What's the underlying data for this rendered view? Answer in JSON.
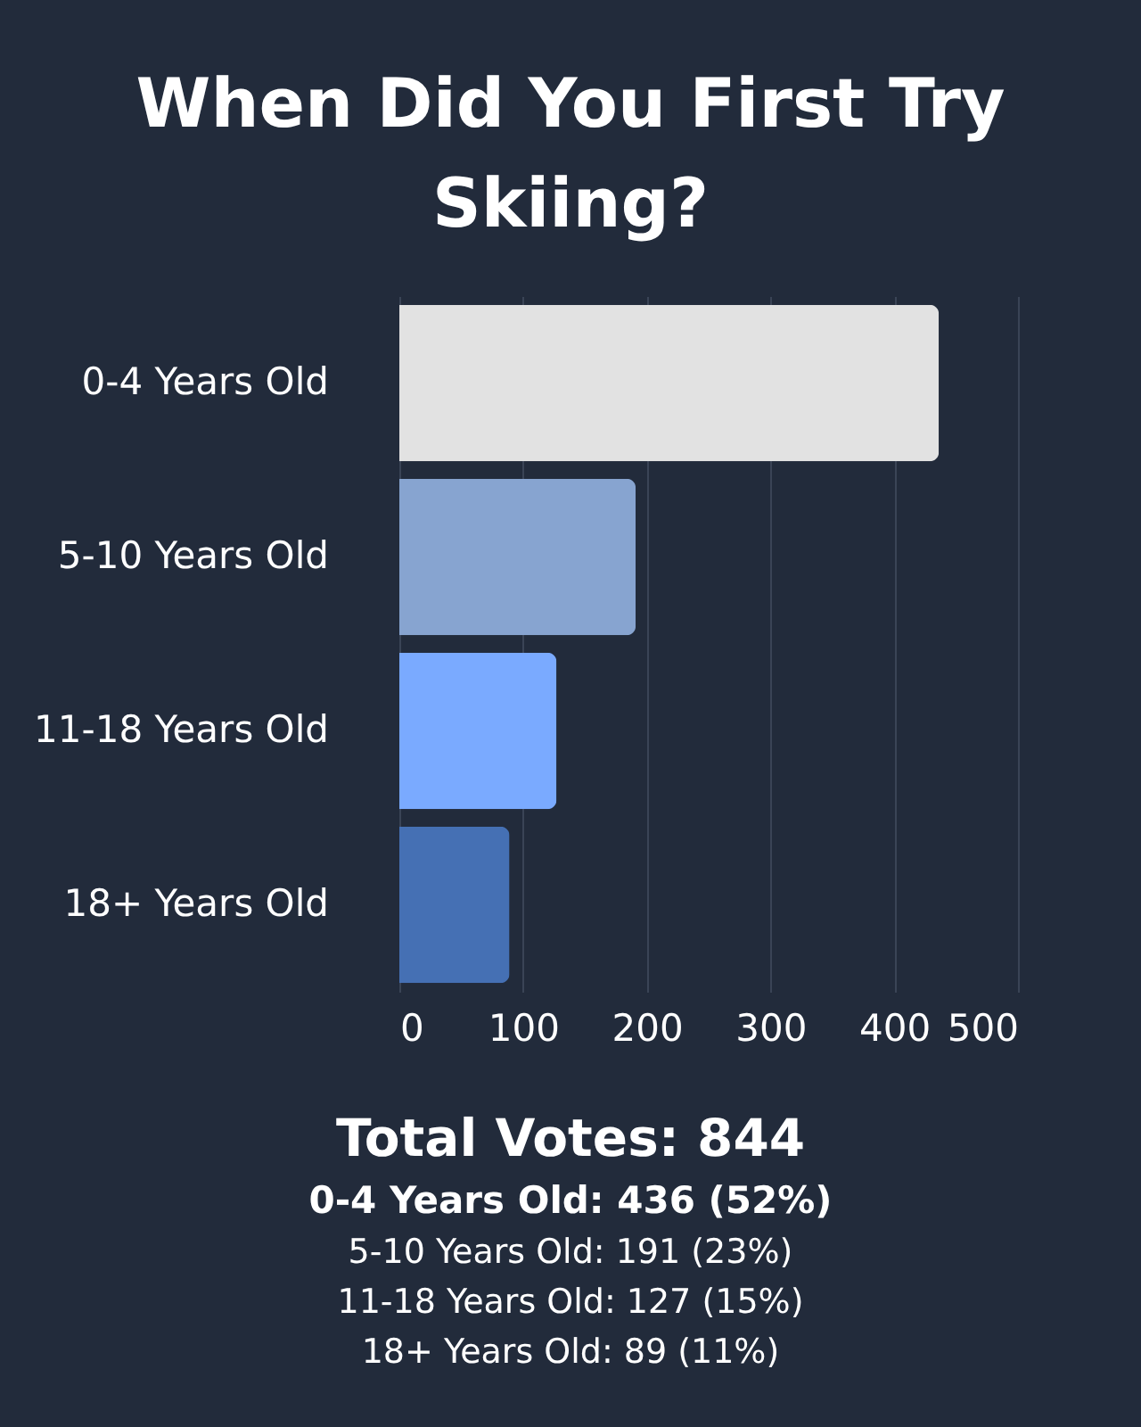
{
  "chart_data": {
    "type": "bar",
    "orientation": "horizontal",
    "title": "When Did You First Try Skiing?",
    "categories": [
      "0-4 Years Old",
      "5-10 Years Old",
      "11-18 Years Old",
      "18+ Years Old"
    ],
    "values": [
      436,
      191,
      127,
      89
    ],
    "colors": [
      "#e2e2e2",
      "#87a4d0",
      "#7aaaff",
      "#4570b4"
    ],
    "xlim": [
      0,
      500
    ],
    "xticks": [
      0,
      100,
      200,
      300,
      400,
      500
    ],
    "grid": "x",
    "annotations": [
      "Total Votes: 844",
      "0-4 Years Old: 436 (52%)",
      "5-10 Years Old: 191 (23%)",
      "11-18 Years Old: 127 (15%)",
      "18+ Years Old: 89 (11%)"
    ]
  }
}
